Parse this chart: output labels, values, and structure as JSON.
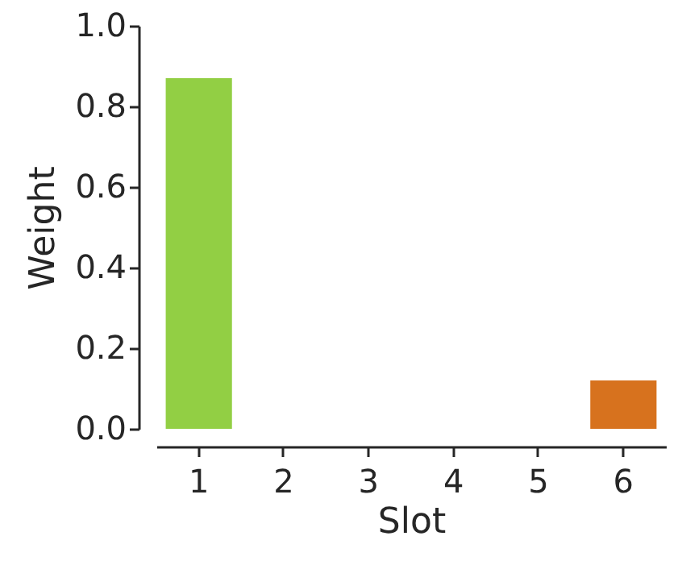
{
  "chart_data": {
    "type": "bar",
    "xlabel": "Slot",
    "ylabel": "Weight",
    "categories": [
      "1",
      "2",
      "3",
      "4",
      "5",
      "6"
    ],
    "values": [
      0.87,
      0,
      0,
      0,
      0,
      0.12
    ],
    "colors": [
      "#92cf44",
      "#4c72b0",
      "#55a868",
      "#c44e52",
      "#8172b2",
      "#d7721e"
    ],
    "ylim": [
      0,
      1.0
    ],
    "yticks": [
      {
        "value": 0,
        "label": "0.0"
      },
      {
        "value": 0.2,
        "label": "0.2"
      },
      {
        "value": 0.4,
        "label": "0.4"
      },
      {
        "value": 0.6,
        "label": "0.6"
      },
      {
        "value": 0.8,
        "label": "0.8"
      },
      {
        "value": 1.0,
        "label": "1.0"
      }
    ],
    "grid": false
  }
}
